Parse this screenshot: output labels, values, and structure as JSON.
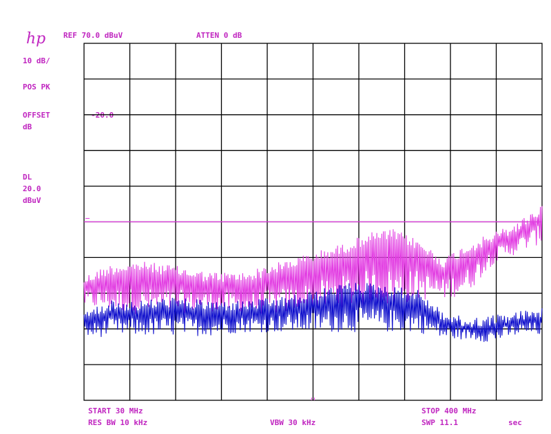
{
  "header": {
    "logo": "hp",
    "ref": "REF 70.0 dBuV",
    "atten": "ATTEN 0 dB"
  },
  "sidebar": {
    "scale": "10 dB/",
    "detector": "POS PK",
    "offset_label": "OFFSET",
    "offset_unit": "dB",
    "offset_value": "-20.0",
    "dl_label": "DL",
    "dl_value": "20.0",
    "dl_unit": "dBuV"
  },
  "footer": {
    "start": "START 30 MHz",
    "stop": "STOP 400 MHz",
    "rbw": "RES BW 10 kHz",
    "vbw": "VBW 30 kHz",
    "sweep": "SWP 11.1",
    "sweep_unit": "sec"
  },
  "colors": {
    "grid": "#000000",
    "annotation": "#c026c0",
    "trace_peak": "#e23ee2",
    "trace_avg": "#1010cc",
    "limit_line": "#e23ee2"
  },
  "chart_data": {
    "type": "line",
    "xlim": [
      30,
      400
    ],
    "ylim": [
      -30,
      70
    ],
    "x_unit": "MHz",
    "y_unit": "dBuV",
    "grid": true,
    "grid_divisions": [
      10,
      10
    ],
    "display_line": 20.0,
    "series": [
      {
        "color": "#e23ee2",
        "x": [
          30,
          50,
          75,
          100,
          130,
          160,
          190,
          220,
          240,
          260,
          280,
          300,
          320,
          340,
          360,
          380,
          400
        ],
        "upper": [
          5,
          8,
          9,
          8,
          6,
          6,
          9,
          12,
          14,
          17,
          18,
          15,
          10,
          14,
          17,
          20,
          25
        ],
        "lower": [
          -4,
          -5,
          -6,
          -6,
          -5,
          -6,
          -6,
          -5,
          -4,
          -4,
          -4,
          -2,
          -2,
          0,
          8,
          11,
          14
        ]
      },
      {
        "color": "#1010cc",
        "x": [
          30,
          50,
          75,
          100,
          130,
          160,
          190,
          220,
          240,
          260,
          280,
          300,
          320,
          340,
          360,
          380,
          400
        ],
        "upper": [
          -5,
          -2,
          -2,
          -1,
          -2,
          -2,
          -1,
          1,
          3,
          3,
          2,
          1,
          -5,
          -7,
          -6,
          -5,
          -4
        ],
        "lower": [
          -13,
          -12,
          -12,
          -12,
          -12,
          -11,
          -11,
          -11,
          -11,
          -11,
          -11,
          -11,
          -13,
          -13,
          -14,
          -12,
          -12
        ]
      }
    ]
  }
}
